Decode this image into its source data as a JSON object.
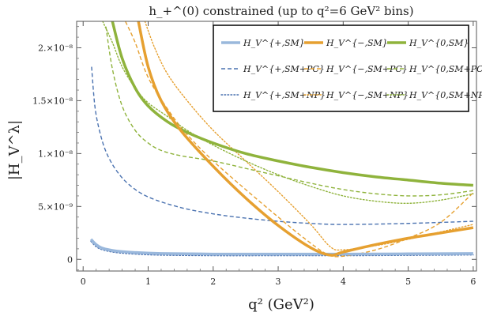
{
  "chart_data": {
    "type": "line",
    "title": "h_+^(0) constrained (up to q²=6 GeV² bins)",
    "xlabel": "q² (GeV²)",
    "ylabel": "|H_V^λ|",
    "xlim": [
      -0.1,
      6.05
    ],
    "ylim": [
      -1.1e-09,
      2.25e-08
    ],
    "xticks": [
      0,
      1,
      2,
      3,
      4,
      5,
      6
    ],
    "xtick_labels": [
      "0",
      "1",
      "2",
      "3",
      "4",
      "5",
      "6"
    ],
    "yticks": [
      0,
      5e-09,
      1e-08,
      1.5e-08,
      2e-08
    ],
    "ytick_labels": [
      "0",
      "5.×10⁻⁹",
      "1.×10⁻⁸",
      "1.5×10⁻⁸",
      "2.×10⁻⁸"
    ],
    "legend_position": "top-right",
    "series": [
      {
        "name": "H_V^{+,SM}",
        "color": "#9ab8dc",
        "style": "solid-thick",
        "points": [
          [
            0.12,
            1.9e-09
          ],
          [
            0.2,
            1.4e-09
          ],
          [
            0.3,
            1.05e-09
          ],
          [
            0.5,
            8e-10
          ],
          [
            0.8,
            6.5e-10
          ],
          [
            1.2,
            5.5e-10
          ],
          [
            2,
            5e-10
          ],
          [
            3,
            5e-10
          ],
          [
            4,
            5e-10
          ],
          [
            5,
            5.2e-10
          ],
          [
            6,
            5.5e-10
          ]
        ]
      },
      {
        "name": "H_V^{+,SM+PC}",
        "color": "#4a72b0",
        "style": "dashed",
        "points": [
          [
            0.13,
            1.82e-08
          ],
          [
            0.18,
            1.45e-08
          ],
          [
            0.25,
            1.22e-08
          ],
          [
            0.35,
            1.02e-08
          ],
          [
            0.5,
            8.5e-09
          ],
          [
            0.7,
            7.1e-09
          ],
          [
            1.0,
            5.9e-09
          ],
          [
            1.5,
            4.9e-09
          ],
          [
            2,
            4.3e-09
          ],
          [
            2.5,
            3.9e-09
          ],
          [
            3,
            3.6e-09
          ],
          [
            3.5,
            3.4e-09
          ],
          [
            4,
            3.3e-09
          ],
          [
            5,
            3.4e-09
          ],
          [
            6,
            3.6e-09
          ]
        ]
      },
      {
        "name": "H_V^{+,SM+NP}",
        "color": "#4a72b0",
        "style": "dotted",
        "points": [
          [
            0.12,
            1.7e-09
          ],
          [
            0.2,
            1.2e-09
          ],
          [
            0.3,
            9e-10
          ],
          [
            0.5,
            6.5e-10
          ],
          [
            0.8,
            5e-10
          ],
          [
            1.2,
            4e-10
          ],
          [
            2,
            3.5e-10
          ],
          [
            3,
            3.5e-10
          ],
          [
            4,
            3.5e-10
          ],
          [
            5,
            3.8e-10
          ],
          [
            6,
            4.2e-10
          ]
        ]
      },
      {
        "name": "H_V^{-,SM}",
        "color": "#e6a030",
        "style": "solid-thick",
        "points": [
          [
            0.85,
            2.25e-08
          ],
          [
            1.0,
            1.82e-08
          ],
          [
            1.2,
            1.5e-08
          ],
          [
            1.5,
            1.22e-08
          ],
          [
            2,
            8.8e-09
          ],
          [
            2.5,
            5.8e-09
          ],
          [
            3,
            3.2e-09
          ],
          [
            3.5,
            1.1e-09
          ],
          [
            3.8,
            4e-10
          ],
          [
            4,
            7e-10
          ],
          [
            4.5,
            1.4e-09
          ],
          [
            5,
            2e-09
          ],
          [
            5.5,
            2.5e-09
          ],
          [
            6,
            3e-09
          ]
        ]
      },
      {
        "name": "H_V^{-,SM+PC}",
        "color": "#e6a030",
        "style": "dashed",
        "points": [
          [
            0.65,
            2.25e-08
          ],
          [
            0.8,
            2.05e-08
          ],
          [
            1.0,
            1.72e-08
          ],
          [
            1.3,
            1.42e-08
          ],
          [
            1.6,
            1.18e-08
          ],
          [
            2,
            9.3e-09
          ],
          [
            2.5,
            6.6e-09
          ],
          [
            3,
            4e-09
          ],
          [
            3.4,
            2e-09
          ],
          [
            3.75,
            5e-10
          ],
          [
            4,
            3e-10
          ],
          [
            4.5,
            9e-10
          ],
          [
            5,
            2e-09
          ],
          [
            5.5,
            3.5e-09
          ],
          [
            6,
            6.3e-09
          ]
        ]
      },
      {
        "name": "H_V^{-,SM+NP}",
        "color": "#e6a030",
        "style": "dotted",
        "points": [
          [
            0.95,
            2.25e-08
          ],
          [
            1.1,
            2e-08
          ],
          [
            1.3,
            1.75e-08
          ],
          [
            1.6,
            1.5e-08
          ],
          [
            2,
            1.22e-08
          ],
          [
            2.5,
            9.3e-09
          ],
          [
            3,
            6.4e-09
          ],
          [
            3.5,
            3.3e-09
          ],
          [
            3.8,
            1.2e-09
          ],
          [
            4,
            9e-10
          ],
          [
            4.5,
            1.3e-09
          ],
          [
            5,
            1.9e-09
          ],
          [
            5.5,
            2.6e-09
          ],
          [
            6,
            3.3e-09
          ]
        ]
      },
      {
        "name": "H_V^{0,SM}",
        "color": "#8fb33c",
        "style": "solid-thick",
        "points": [
          [
            0.45,
            2.25e-08
          ],
          [
            0.6,
            1.9e-08
          ],
          [
            0.8,
            1.62e-08
          ],
          [
            1.0,
            1.45e-08
          ],
          [
            1.3,
            1.3e-08
          ],
          [
            1.6,
            1.2e-08
          ],
          [
            2,
            1.1e-08
          ],
          [
            2.5,
            1e-08
          ],
          [
            3,
            9.3e-09
          ],
          [
            3.5,
            8.7e-09
          ],
          [
            4,
            8.2e-09
          ],
          [
            4.5,
            7.8e-09
          ],
          [
            5,
            7.5e-09
          ],
          [
            5.5,
            7.2e-09
          ],
          [
            6,
            7e-09
          ]
        ]
      },
      {
        "name": "H_V^{0,SM+PC}",
        "color": "#8fb33c",
        "style": "dashed",
        "points": [
          [
            0.35,
            2.2e-08
          ],
          [
            0.45,
            1.8e-08
          ],
          [
            0.6,
            1.45e-08
          ],
          [
            0.8,
            1.22e-08
          ],
          [
            1.0,
            1.1e-08
          ],
          [
            1.2,
            1.03e-08
          ],
          [
            1.5,
            9.8e-09
          ],
          [
            2,
            9.3e-09
          ],
          [
            2.5,
            8.6e-09
          ],
          [
            3,
            7.9e-09
          ],
          [
            3.5,
            7.2e-09
          ],
          [
            4,
            6.6e-09
          ],
          [
            4.5,
            6.2e-09
          ],
          [
            5,
            6e-09
          ],
          [
            5.5,
            6.1e-09
          ],
          [
            6,
            6.5e-09
          ]
        ]
      },
      {
        "name": "H_V^{0,SM+NP}",
        "color": "#8fb33c",
        "style": "dotted",
        "points": [
          [
            0.3,
            2.25e-08
          ],
          [
            0.45,
            2.05e-08
          ],
          [
            0.6,
            1.82e-08
          ],
          [
            0.8,
            1.62e-08
          ],
          [
            1.0,
            1.48e-08
          ],
          [
            1.3,
            1.35e-08
          ],
          [
            1.6,
            1.22e-08
          ],
          [
            2,
            1.08e-08
          ],
          [
            2.5,
            9.3e-09
          ],
          [
            3,
            8e-09
          ],
          [
            3.5,
            6.9e-09
          ],
          [
            4,
            6e-09
          ],
          [
            4.5,
            5.5e-09
          ],
          [
            5,
            5.3e-09
          ],
          [
            5.5,
            5.6e-09
          ],
          [
            6,
            6.2e-09
          ]
        ]
      }
    ],
    "legend": [
      {
        "text": "H_V^{+,SM}",
        "series": 0
      },
      {
        "text": "H_V^{−,SM}",
        "series": 3
      },
      {
        "text": "H_V^{0,SM}",
        "series": 6
      },
      {
        "text": "H_V^{+,SM+PC}",
        "series": 1
      },
      {
        "text": "H_V^{−,SM+PC}",
        "series": 4
      },
      {
        "text": "H_V^{0,SM+PC}",
        "series": 7
      },
      {
        "text": "H_V^{+,SM+NP}",
        "series": 2
      },
      {
        "text": "H_V^{−,SM+NP}",
        "series": 5
      },
      {
        "text": "H_V^{0,SM+NP}",
        "series": 8
      }
    ]
  }
}
